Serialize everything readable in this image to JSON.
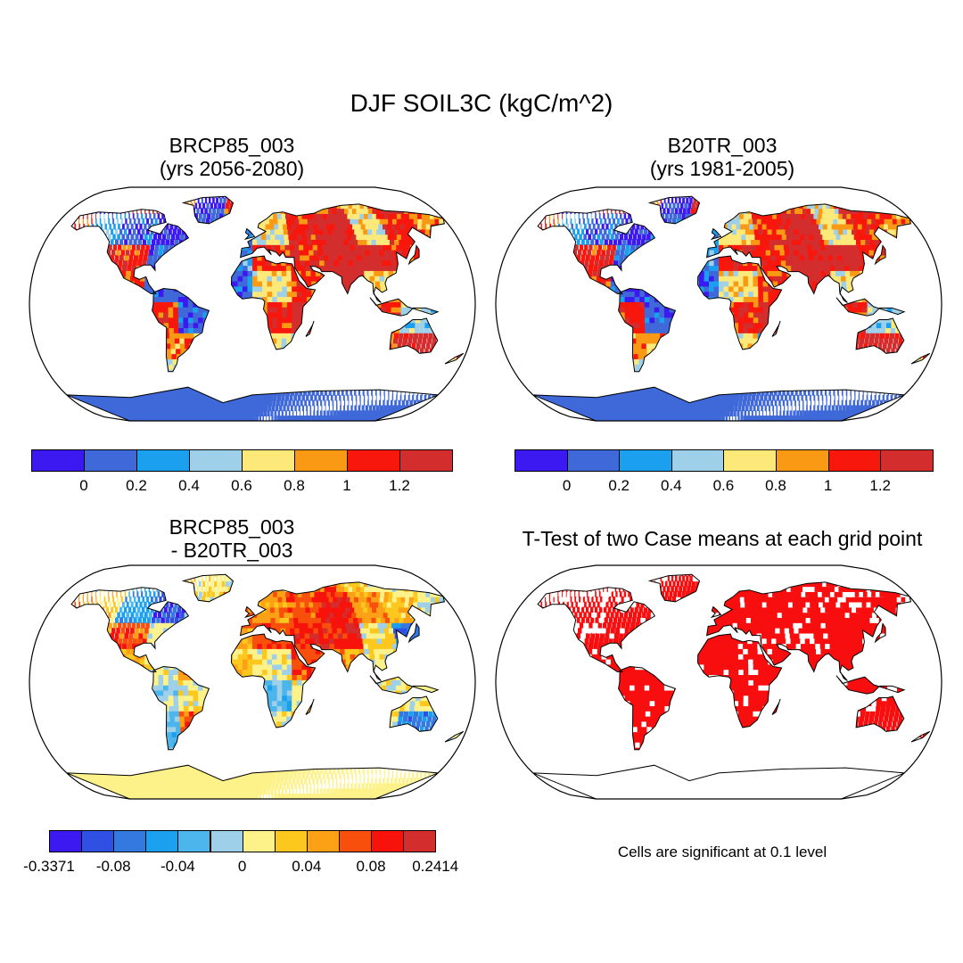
{
  "title": "DJF SOIL3C (kgC/m^2)",
  "panels": [
    {
      "id": "p1",
      "title_line1": "BRCP85_003",
      "title_line2": "(yrs 2056-2080)",
      "field": "case"
    },
    {
      "id": "p2",
      "title_line1": "B20TR_003",
      "title_line2": "(yrs 1981-2005)",
      "field": "control"
    },
    {
      "id": "p3",
      "title_line1": "BRCP85_003",
      "title_line2": "- B20TR_003",
      "field": "difference"
    },
    {
      "id": "p4",
      "title_line1": "T-Test of two Case means at each grid point",
      "title_line2": "",
      "field": "significance"
    }
  ],
  "significance_note": "Cells are significant at 0.1 level",
  "colorbars": {
    "absolute": {
      "colors": [
        "#3b19f0",
        "#3f68d8",
        "#1aa0ef",
        "#9ed0ea",
        "#fde97a",
        "#fa9a14",
        "#f8170c",
        "#d42d2d"
      ],
      "labels": [
        "0",
        "0.2",
        "0.4",
        "0.6",
        "0.8",
        "1",
        "1.2"
      ]
    },
    "difference": {
      "colors": [
        "#3b19f0",
        "#2f50e3",
        "#3479e0",
        "#1aa0ef",
        "#4cb6ec",
        "#9ed0ea",
        "#fdf28a",
        "#fdc81e",
        "#fca016",
        "#f8500c",
        "#f8120c",
        "#d42d2d"
      ],
      "labels": [
        "-0.3371",
        "-0.08",
        "-0.04",
        "0",
        "0.04",
        "0.08",
        "0.2414"
      ]
    }
  },
  "map_colors": {
    "ocean": "#ffffff",
    "coast": "#000000",
    "significant": "#f80e0e"
  }
}
